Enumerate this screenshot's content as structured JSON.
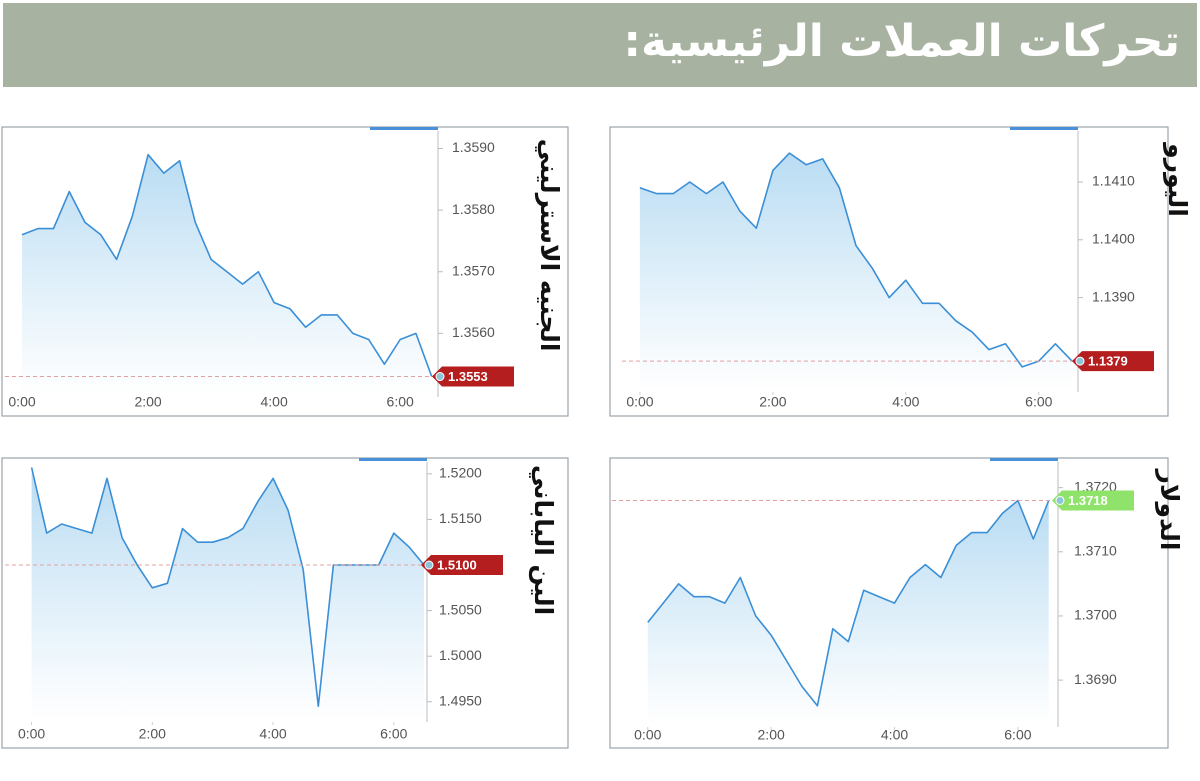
{
  "header": {
    "title": "تحركات العملات الرئيسية:"
  },
  "chart_data": [
    {
      "type": "line",
      "title": "اليورو",
      "x": [
        0,
        0.25,
        0.5,
        0.75,
        1,
        1.25,
        1.5,
        1.75,
        2,
        2.25,
        2.5,
        2.75,
        3,
        3.25,
        3.5,
        3.75,
        4,
        4.25,
        4.5,
        4.75,
        5,
        5.25,
        5.5,
        5.75,
        6,
        6.25,
        6.5
      ],
      "series": [
        {
          "color": "#3a8fd6",
          "values": [
            1.1409,
            1.1408,
            1.1408,
            1.141,
            1.1408,
            1.141,
            1.1405,
            1.1402,
            1.1412,
            1.1415,
            1.1413,
            1.1414,
            1.1409,
            1.1399,
            1.1395,
            1.139,
            1.1393,
            1.1389,
            1.1389,
            1.1386,
            1.1384,
            1.1381,
            1.1382,
            1.1378,
            1.1379,
            1.1382,
            1.1379
          ]
        }
      ],
      "xlim": [
        -0.27,
        6.59
      ],
      "xticks": [
        {
          "value": 0,
          "label": "0:00"
        },
        {
          "value": 2,
          "label": "2:00"
        },
        {
          "value": 4,
          "label": "4:00"
        },
        {
          "value": 6,
          "label": "6:00"
        }
      ],
      "ylim": [
        1.1374,
        1.1419
      ],
      "yticks": [
        {
          "value": 1.139,
          "label": "1.1390"
        },
        {
          "value": 1.14,
          "label": "1.1400"
        },
        {
          "value": 1.141,
          "label": "1.1410"
        }
      ],
      "last_value": 1.1379,
      "marker_color": "#b41e1e",
      "marker_text_color": "#ffffff"
    },
    {
      "type": "line",
      "title": "الجنيه الاسترليني",
      "x": [
        0,
        0.25,
        0.5,
        0.75,
        1,
        1.25,
        1.5,
        1.75,
        2,
        2.25,
        2.5,
        2.75,
        3,
        3.25,
        3.5,
        3.75,
        4,
        4.25,
        4.5,
        4.75,
        5,
        5.25,
        5.5,
        5.75,
        6,
        6.25,
        6.5
      ],
      "series": [
        {
          "color": "#3a8fd6",
          "values": [
            1.3576,
            1.3577,
            1.3577,
            1.3583,
            1.3578,
            1.3576,
            1.3572,
            1.3579,
            1.3589,
            1.3586,
            1.3588,
            1.3578,
            1.3572,
            1.357,
            1.3568,
            1.357,
            1.3565,
            1.3564,
            1.3561,
            1.3563,
            1.3563,
            1.356,
            1.3559,
            1.3555,
            1.3559,
            1.356,
            1.3553
          ]
        }
      ],
      "xlim": [
        -0.27,
        6.6
      ],
      "xticks": [
        {
          "value": 0,
          "label": "0:00"
        },
        {
          "value": 2,
          "label": "2:00"
        },
        {
          "value": 4,
          "label": "4:00"
        },
        {
          "value": 6,
          "label": "6:00"
        }
      ],
      "ylim": [
        1.355,
        1.3593
      ],
      "yticks": [
        {
          "value": 1.356,
          "label": "1.3560"
        },
        {
          "value": 1.357,
          "label": "1.3570"
        },
        {
          "value": 1.358,
          "label": "1.3580"
        },
        {
          "value": 1.359,
          "label": "1.3590"
        }
      ],
      "last_value": 1.3553,
      "marker_color": "#b41e1e",
      "marker_text_color": "#ffffff"
    },
    {
      "type": "line",
      "title": "الدولار",
      "x": [
        0,
        0.25,
        0.5,
        0.75,
        1,
        1.25,
        1.5,
        1.75,
        2,
        2.25,
        2.5,
        2.75,
        3,
        3.25,
        3.5,
        3.75,
        4,
        4.25,
        4.5,
        4.75,
        5,
        5.25,
        5.5,
        5.75,
        6,
        6.25,
        6.5
      ],
      "series": [
        {
          "color": "#3a8fd6",
          "values": [
            1.3699,
            1.3702,
            1.3705,
            1.3703,
            1.3703,
            1.3702,
            1.3706,
            1.37,
            1.3697,
            1.3693,
            1.3689,
            1.3686,
            1.3698,
            1.3696,
            1.3704,
            1.3703,
            1.3702,
            1.3706,
            1.3708,
            1.3706,
            1.3711,
            1.3713,
            1.3713,
            1.3716,
            1.3718,
            1.3712,
            1.3718
          ]
        }
      ],
      "xlim": [
        -0.58,
        6.65
      ],
      "xticks": [
        {
          "value": 0,
          "label": "0:00"
        },
        {
          "value": 2,
          "label": "2:00"
        },
        {
          "value": 4,
          "label": "4:00"
        },
        {
          "value": 6,
          "label": "6:00"
        }
      ],
      "ylim": [
        1.3683,
        1.3724
      ],
      "yticks": [
        {
          "value": 1.369,
          "label": "1.3690"
        },
        {
          "value": 1.37,
          "label": "1.3700"
        },
        {
          "value": 1.371,
          "label": "1.3710"
        },
        {
          "value": 1.372,
          "label": "1.3720"
        }
      ],
      "last_value": 1.3718,
      "marker_color": "#8fe36a",
      "marker_text_color": "#ffffff"
    },
    {
      "type": "line",
      "title": "الين الياباني",
      "x": [
        0,
        0.25,
        0.5,
        0.75,
        1,
        1.25,
        1.5,
        1.75,
        2,
        2.25,
        2.5,
        2.75,
        3,
        3.25,
        3.5,
        3.75,
        4,
        4.25,
        4.5,
        4.75,
        5,
        5.25,
        5.5,
        5.75,
        6,
        6.25,
        6.5
      ],
      "series": [
        {
          "color": "#3a8fd6",
          "values": [
            1.5207,
            1.5135,
            1.5145,
            1.514,
            1.5135,
            1.5195,
            1.513,
            1.51,
            1.5075,
            1.508,
            1.514,
            1.5125,
            1.5125,
            1.513,
            1.514,
            1.517,
            1.5195,
            1.516,
            1.5095,
            1.4945,
            1.51,
            1.51,
            1.51,
            1.51,
            1.5135,
            1.512,
            1.51
          ]
        }
      ],
      "xlim": [
        -0.44,
        6.55
      ],
      "xticks": [
        {
          "value": 0,
          "label": "0:00"
        },
        {
          "value": 2,
          "label": "2:00"
        },
        {
          "value": 4,
          "label": "4:00"
        },
        {
          "value": 6,
          "label": "6:00"
        }
      ],
      "ylim": [
        1.493,
        1.5213
      ],
      "yticks": [
        {
          "value": 1.495,
          "label": "1.4950"
        },
        {
          "value": 1.5,
          "label": "1.5000"
        },
        {
          "value": 1.505,
          "label": "1.5050"
        },
        {
          "value": 1.515,
          "label": "1.5150"
        },
        {
          "value": 1.52,
          "label": "1.5200"
        }
      ],
      "last_value": {
        "value": 1.51,
        "label": "1.5100"
      },
      "marker_color": "#b41e1e",
      "marker_text_color": "#ffffff"
    }
  ]
}
